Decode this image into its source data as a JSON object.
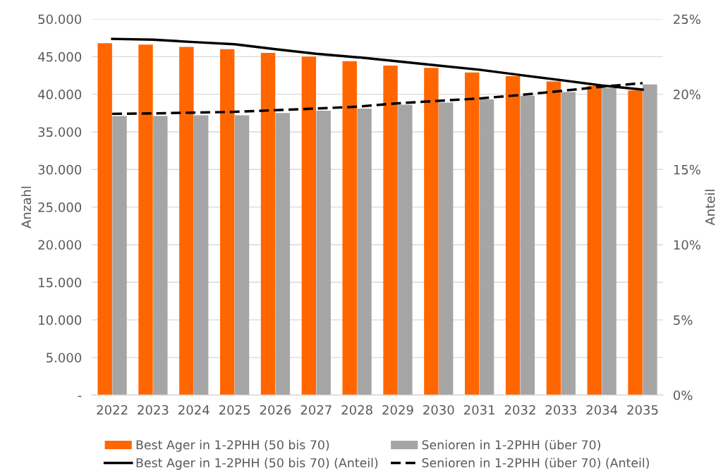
{
  "chart_data": {
    "type": "bar",
    "categories": [
      "2022",
      "2023",
      "2024",
      "2025",
      "2026",
      "2027",
      "2028",
      "2029",
      "2030",
      "2031",
      "2032",
      "2033",
      "2034",
      "2035"
    ],
    "ylabel": "Anzahl",
    "y2label": "Anteil",
    "series": [
      {
        "name": "Best Ager in 1-2PHH (50 bis 70)",
        "color": "#ff6600",
        "values": [
          46800,
          46600,
          46300,
          46000,
          45500,
          45000,
          44400,
          43800,
          43500,
          42900,
          42400,
          41700,
          41100,
          40500
        ]
      },
      {
        "name": "Senioren in 1-2PHH (über 70)",
        "color": "#a5a5a5",
        "values": [
          37100,
          37100,
          37200,
          37200,
          37500,
          37800,
          38100,
          38600,
          38900,
          39300,
          39800,
          40300,
          40800,
          41300
        ]
      },
      {
        "name": "Best Ager in 1-2PHH (50 bis 70) (Anteil)",
        "type": "line",
        "axis": "y2",
        "line_style": "solid",
        "color": "#000000",
        "values": [
          23.68,
          23.63,
          23.47,
          23.32,
          23.0,
          22.69,
          22.46,
          22.19,
          21.91,
          21.63,
          21.28,
          20.94,
          20.58,
          20.31
        ]
      },
      {
        "name": "Senioren in 1-2PHH (über 70) (Anteil)",
        "type": "line",
        "axis": "y2",
        "line_style": "dashed",
        "color": "#000000",
        "values": [
          18.7,
          18.73,
          18.78,
          18.83,
          18.94,
          19.05,
          19.17,
          19.4,
          19.56,
          19.72,
          19.95,
          20.22,
          20.5,
          20.74
        ]
      }
    ],
    "ylim": [
      0,
      50000
    ],
    "yticks": [
      {
        "value": 0,
        "label": "-"
      },
      {
        "value": 5000,
        "label": "5.000"
      },
      {
        "value": 10000,
        "label": "10.000"
      },
      {
        "value": 15000,
        "label": "15.000"
      },
      {
        "value": 20000,
        "label": "20.000"
      },
      {
        "value": 25000,
        "label": "25.000"
      },
      {
        "value": 30000,
        "label": "30.000"
      },
      {
        "value": 35000,
        "label": "35.000"
      },
      {
        "value": 40000,
        "label": "40.000"
      },
      {
        "value": 45000,
        "label": "45.000"
      },
      {
        "value": 50000,
        "label": "50.000"
      }
    ],
    "y2lim": [
      0,
      25
    ],
    "y2ticks": [
      {
        "value": 0,
        "label": "0%"
      },
      {
        "value": 5,
        "label": "5%"
      },
      {
        "value": 10,
        "label": "10%"
      },
      {
        "value": 15,
        "label": "15%"
      },
      {
        "value": 20,
        "label": "20%"
      },
      {
        "value": 25,
        "label": "25%"
      }
    ],
    "grid": "y",
    "legend": "bottom"
  }
}
